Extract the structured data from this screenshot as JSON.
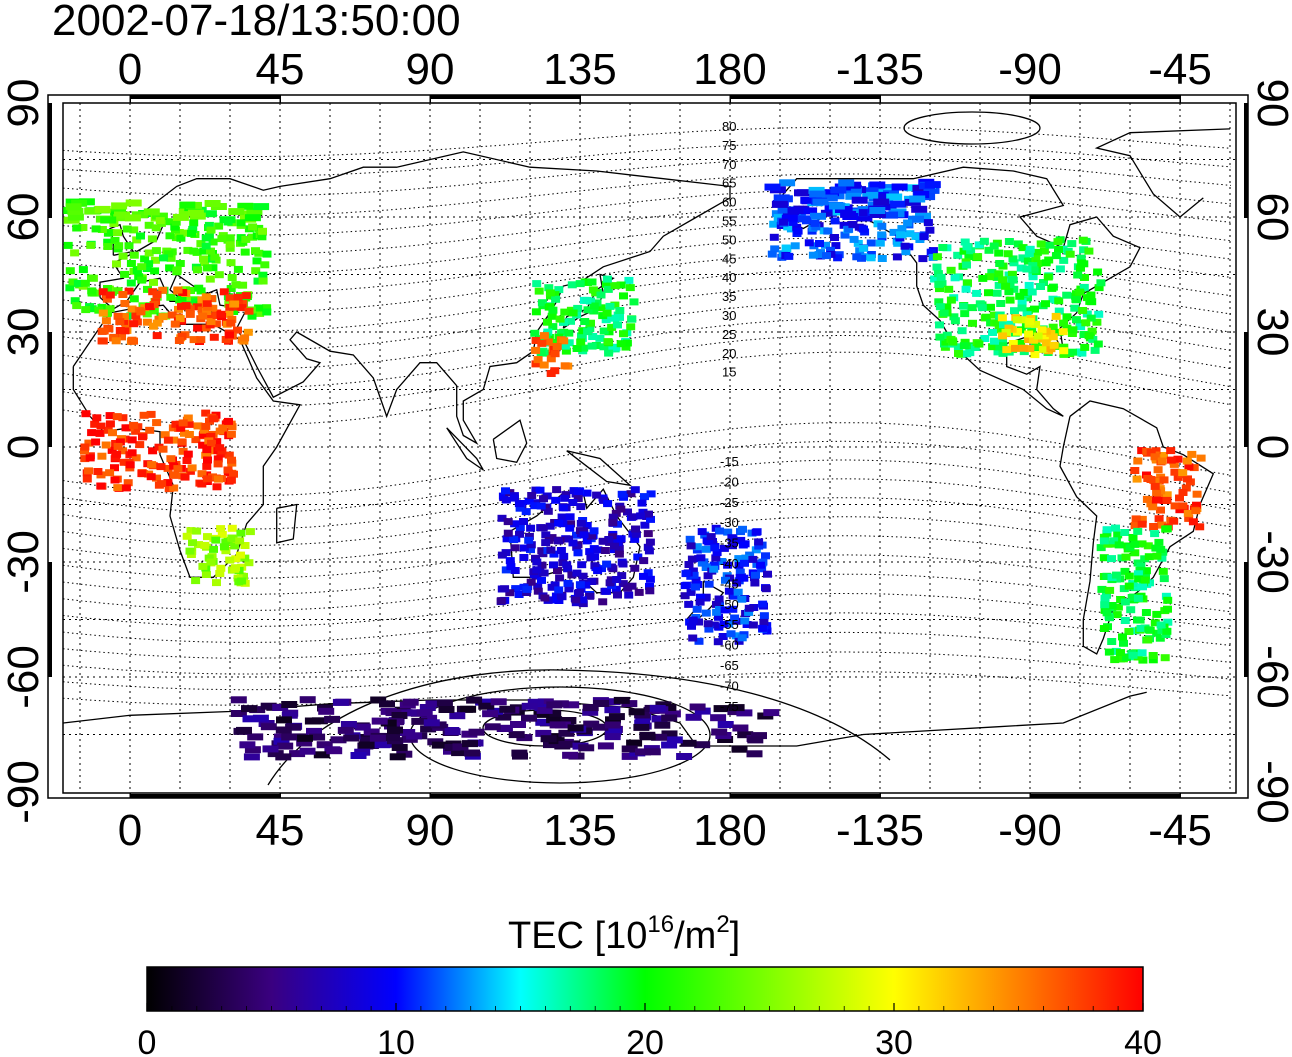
{
  "title": "2002-07-18/13:50:00",
  "map": {
    "lon_tick_labels": [
      "0",
      "45",
      "90",
      "135",
      "180",
      "-135",
      "-90",
      "-45"
    ],
    "lat_tick_labels": [
      "90",
      "60",
      "30",
      "0",
      "-30",
      "-60",
      "-90"
    ],
    "contour_labels_north": [
      "80",
      "75",
      "70",
      "65",
      "60",
      "55",
      "50",
      "45",
      "40",
      "35",
      "30",
      "25",
      "20",
      "15"
    ],
    "contour_labels_south": [
      "-15",
      "-20",
      "-25",
      "-30",
      "-35",
      "-40",
      "-45",
      "-50",
      "-55",
      "-60",
      "-65",
      "-70",
      "-75"
    ],
    "grid": true,
    "coastlines": true
  },
  "colorbar": {
    "label_main": "TEC  [10",
    "label_exp1": "16",
    "label_mid": "/m",
    "label_exp2": "2",
    "label_end": "]",
    "tick_labels": [
      "0",
      "10",
      "20",
      "30",
      "40"
    ],
    "range": [
      0,
      40
    ],
    "colors": [
      "#000000",
      "#3a0080",
      "#0000ff",
      "#00ffff",
      "#00ff00",
      "#ffff00",
      "#ff8000",
      "#ff0000"
    ]
  },
  "chart_data": {
    "type": "heatmap",
    "title": "2002-07-18/13:50:00",
    "xlabel": "",
    "ylabel": "",
    "x_ticks": [
      "0",
      "45",
      "90",
      "135",
      "180",
      "-135",
      "-90",
      "-45"
    ],
    "y_ticks": [
      "90",
      "60",
      "30",
      "0",
      "-30",
      "-60",
      "-90"
    ],
    "value_range": [
      0,
      40
    ],
    "value_label": "TEC [10^16/m^2]",
    "regions": [
      {
        "lon": [
          -20,
          40
        ],
        "lat": [
          35,
          65
        ],
        "tec": 22
      },
      {
        "lon": [
          -10,
          35
        ],
        "lat": [
          28,
          42
        ],
        "tec": 37
      },
      {
        "lon": [
          -15,
          30
        ],
        "lat": [
          -10,
          10
        ],
        "tec": 38
      },
      {
        "lon": [
          15,
          35
        ],
        "lat": [
          -35,
          -20
        ],
        "tec": 26
      },
      {
        "lon": [
          120,
          150
        ],
        "lat": [
          25,
          45
        ],
        "tec": 19
      },
      {
        "lon": [
          120,
          130
        ],
        "lat": [
          20,
          30
        ],
        "tec": 37
      },
      {
        "lon": [
          190,
          240
        ],
        "lat": [
          50,
          70
        ],
        "tec": 11
      },
      {
        "lon": [
          240,
          290
        ],
        "lat": [
          25,
          55
        ],
        "tec": 19
      },
      {
        "lon": [
          260,
          280
        ],
        "lat": [
          25,
          35
        ],
        "tec": 31
      },
      {
        "lon": [
          300,
          320
        ],
        "lat": [
          -20,
          0
        ],
        "tec": 37
      },
      {
        "lon": [
          290,
          310
        ],
        "lat": [
          -55,
          -20
        ],
        "tec": 19
      },
      {
        "lon": [
          110,
          155
        ],
        "lat": [
          -40,
          -10
        ],
        "tec": 8
      },
      {
        "lon": [
          165,
          190
        ],
        "lat": [
          -50,
          -20
        ],
        "tec": 10
      },
      {
        "lon": [
          30,
          190
        ],
        "lat": [
          -80,
          -65
        ],
        "tec": 4
      }
    ]
  }
}
